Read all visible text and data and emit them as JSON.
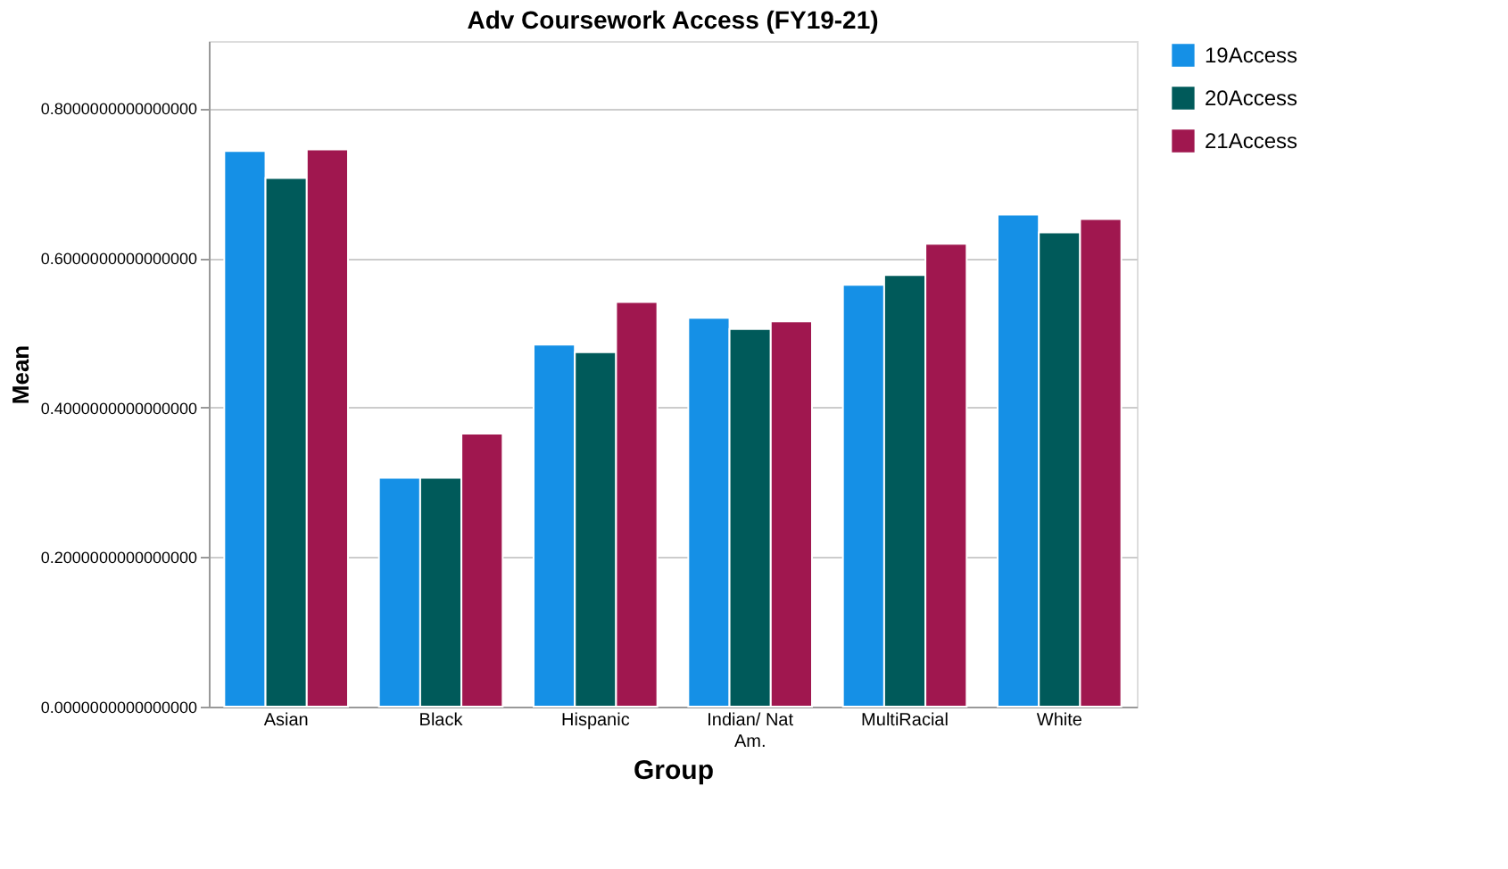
{
  "chart_data": {
    "type": "bar",
    "title": "Adv Coursework Access (FY19-21)",
    "xlabel": "Group",
    "ylabel": "Mean",
    "categories": [
      "Asian",
      "Black",
      "Hispanic",
      "Indian/ Nat\nAm.",
      "MultiRacial",
      "White"
    ],
    "series": [
      {
        "name": "19Access",
        "color": "#1590e6",
        "values": [
          0.743,
          0.306,
          0.484,
          0.52,
          0.564,
          0.658
        ]
      },
      {
        "name": "20Access",
        "color": "#005a5a",
        "values": [
          0.707,
          0.306,
          0.474,
          0.505,
          0.577,
          0.634
        ]
      },
      {
        "name": "21Access",
        "color": "#a0174f",
        "values": [
          0.745,
          0.365,
          0.541,
          0.515,
          0.619,
          0.652
        ]
      }
    ],
    "ylim": [
      0,
      0.89
    ],
    "yticks": [
      {
        "value": 0,
        "label": "0.0000000000000000"
      },
      {
        "value": 0.2,
        "label": "0.2000000000000000"
      },
      {
        "value": 0.4,
        "label": "0.4000000000000000"
      },
      {
        "value": 0.6,
        "label": "0.6000000000000000"
      },
      {
        "value": 0.8,
        "label": "0.8000000000000000"
      }
    ],
    "grid": "y",
    "legend": "top right"
  }
}
